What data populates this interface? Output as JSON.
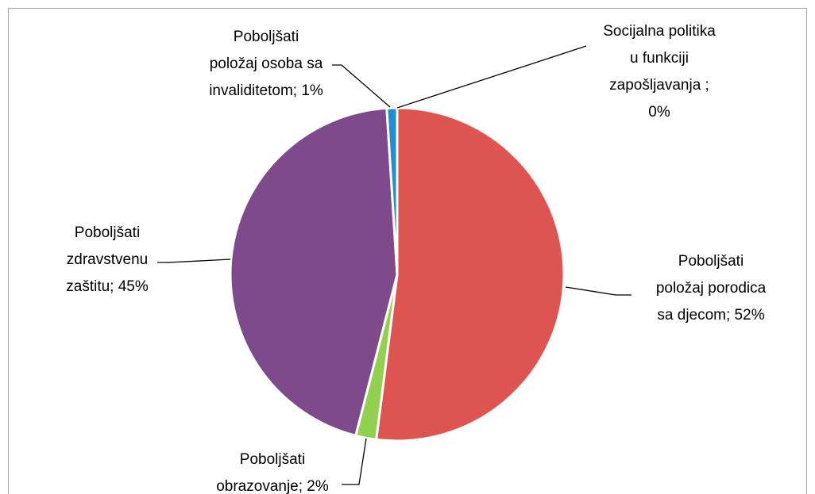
{
  "chart_data": {
    "type": "pie",
    "values": [
      52,
      2,
      45,
      1,
      0
    ],
    "value_labels": [
      "Poboljšati\npoložaj porodica\nsa djecom; 52%",
      "Poboljšati\nobrazovanje; 2%",
      "Poboljšati\nzdravstvenu\nzaštitu; 45%",
      "Poboljšati\npoložaj osoba sa\ninvaliditetom; 1%",
      "Socijalna politika\nu funkciji\nzapošljavanja ;\n0%"
    ],
    "colors": [
      "#de5450",
      "#92d050",
      "#7f4a8b",
      "#1e8fd0",
      "#a0a0a0"
    ]
  }
}
